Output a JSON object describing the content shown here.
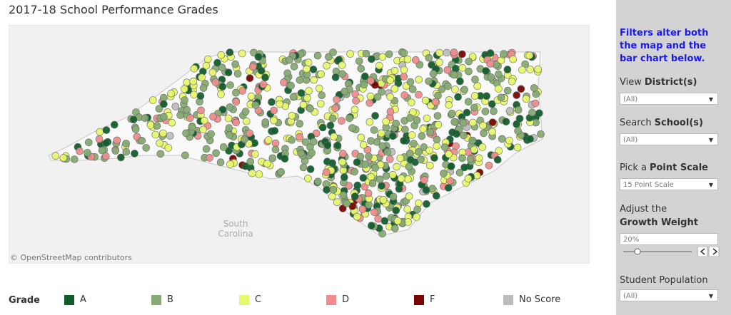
{
  "title": "2017-18 School Performance Grades",
  "map": {
    "attribution": "© OpenStreetMap contributors",
    "place_label": [
      "South",
      "Carolina"
    ]
  },
  "legend": {
    "title": "Grade",
    "items": [
      {
        "label": "A",
        "color": "#115e2c"
      },
      {
        "label": "B",
        "color": "#86ab73"
      },
      {
        "label": "C",
        "color": "#e8f86c"
      },
      {
        "label": "D",
        "color": "#f08c8c"
      },
      {
        "label": "F",
        "color": "#7a0505"
      },
      {
        "label": "No Score",
        "color": "#bdbdbd"
      }
    ]
  },
  "panel": {
    "note": "Filters alter both the map and the bar chart below.",
    "filters": [
      {
        "label": [
          "View",
          "District(s)"
        ],
        "value": "(All)"
      },
      {
        "label": [
          "Search",
          "School(s)"
        ],
        "value": "(All)"
      },
      {
        "label": [
          "Pick a",
          "Point Scale"
        ],
        "value": "15 Point Scale"
      }
    ],
    "growth": {
      "label": [
        "Adjust the",
        "Growth Weight"
      ],
      "value": "20%"
    },
    "population": {
      "label": "Student Population",
      "value": "(All)"
    }
  }
}
